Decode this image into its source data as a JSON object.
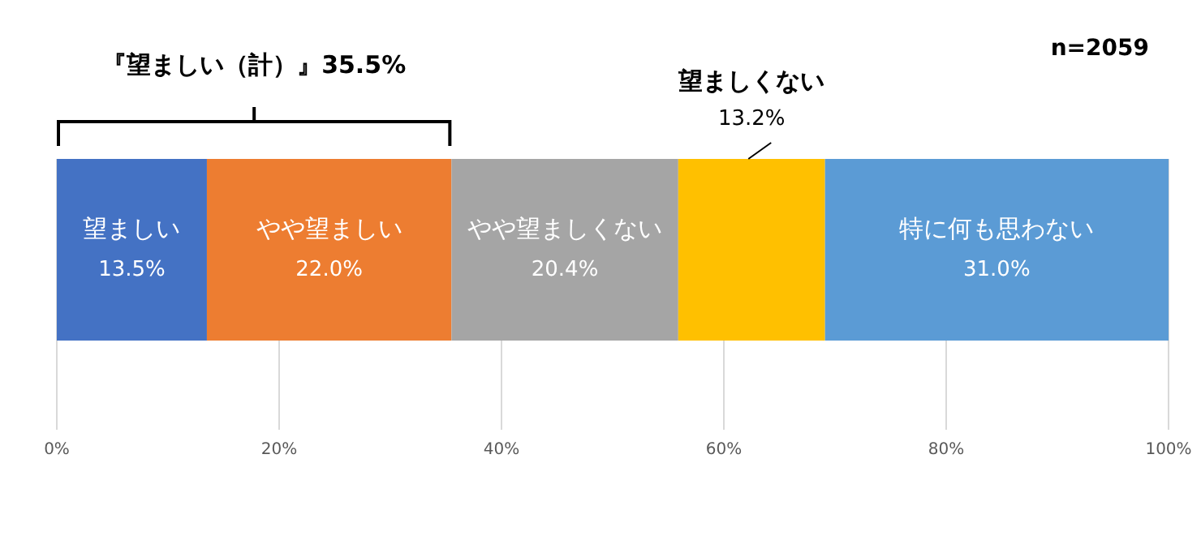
{
  "chart_data": {
    "type": "bar",
    "orientation": "horizontal",
    "stacked": true,
    "categories": [
      null
    ],
    "series": [
      {
        "name": "望ましい",
        "color": "#4472c4",
        "values": [
          13.5
        ],
        "value_labels": [
          "13.5%"
        ]
      },
      {
        "name": "やや望ましい",
        "color": "#ed7d31",
        "values": [
          22.0
        ],
        "value_labels": [
          "22.0%"
        ]
      },
      {
        "name": "やや望ましくない",
        "color": "#a5a5a5",
        "values": [
          20.4
        ],
        "value_labels": [
          "20.4%"
        ]
      },
      {
        "name": "望ましくない",
        "color": "#ffc000",
        "values": [
          13.2
        ],
        "value_labels": [
          "13.2%"
        ]
      },
      {
        "name": "特に何も思わない",
        "color": "#5b9bd5",
        "values": [
          31.0
        ],
        "value_labels": [
          "31.0%"
        ]
      }
    ],
    "xlim": [
      0,
      100
    ],
    "xticks": [
      {
        "value": 0,
        "label": "0%"
      },
      {
        "value": 20,
        "label": "20%"
      },
      {
        "value": 40,
        "label": "40%"
      },
      {
        "value": 60,
        "label": "60%"
      },
      {
        "value": 80,
        "label": "80%"
      },
      {
        "value": 100,
        "label": "100%"
      }
    ],
    "tick_labels": "x",
    "grid": "x",
    "legend": false,
    "annotations": [
      "『望ましい（計）』35.5%",
      "n=2059"
    ]
  }
}
